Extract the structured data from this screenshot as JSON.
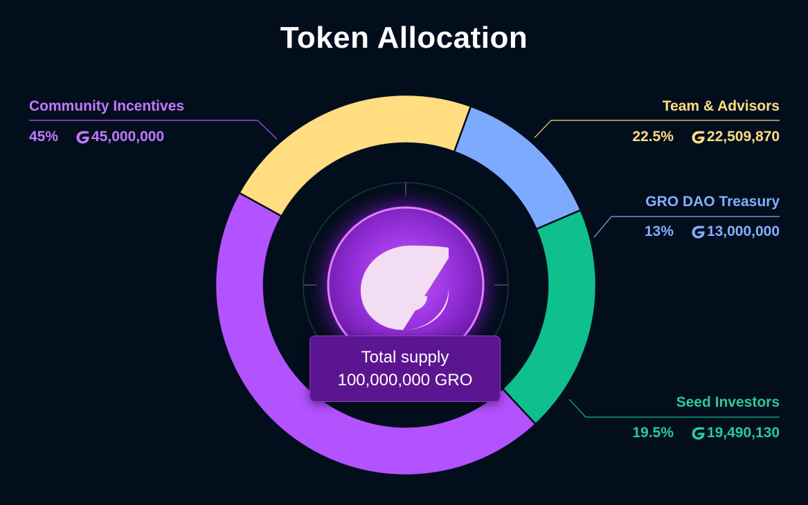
{
  "chart_data": {
    "type": "pie",
    "title": "Token Allocation",
    "categories": [
      "Community Incentives",
      "Team & Advisors",
      "GRO DAO Treasury",
      "Seed Investors"
    ],
    "values": [
      45,
      22.5,
      13,
      19.5
    ],
    "unit": "%",
    "donut": true,
    "slices": [
      {
        "label": "Community Incentives",
        "percent_text": "45%",
        "amount_text": "45,000,000",
        "percent": 45,
        "amount": 45000000,
        "color": "#b352ff"
      },
      {
        "label": "Team & Advisors",
        "percent_text": "22.5%",
        "amount_text": "22,509,870",
        "percent": 22.5,
        "amount": 22509870,
        "color": "#ffdd80"
      },
      {
        "label": "GRO DAO Treasury",
        "percent_text": "13%",
        "amount_text": "13,000,000",
        "percent": 13,
        "amount": 13000000,
        "color": "#7daafc"
      },
      {
        "label": "Seed Investors",
        "percent_text": "19.5%",
        "amount_text": "19,490,130",
        "percent": 19.5,
        "amount": 19490130,
        "color": "#10bf8e"
      }
    ],
    "center": {
      "line1": "Total supply",
      "line2": "100,000,000 GRO"
    },
    "icon": "gro-logo-icon"
  },
  "theme": {
    "background": "#030e1d",
    "title_color": "#ffffff",
    "logo_glow": "#b83cff",
    "logo_fill": "#f3ddf3",
    "center_box": "#5b1591"
  }
}
